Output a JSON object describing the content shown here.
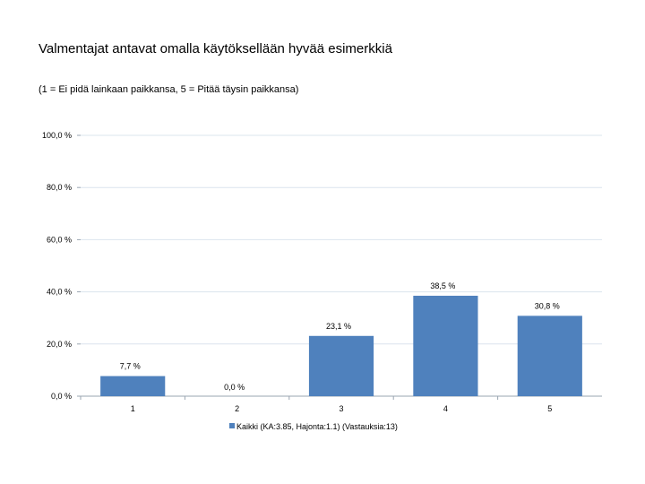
{
  "title": "Valmentajat antavat omalla käytöksellään hyvää esimerkkiä",
  "subtitle": "(1 = Ei pidä lainkaan paikkansa, 5 = Pitää täysin paikkansa)",
  "colors": {
    "bar": "#4f81bd",
    "grid": "#dbe4ee",
    "axis": "#9aa5b1"
  },
  "chart_data": {
    "type": "bar",
    "categories": [
      "1",
      "2",
      "3",
      "4",
      "5"
    ],
    "series": [
      {
        "name": "Kaikki (KA:3.85, Hajonta:1.1) (Vastauksia:13)",
        "values": [
          7.7,
          0.0,
          23.1,
          38.5,
          30.8
        ],
        "labels": [
          "7,7 %",
          "0,0 %",
          "23,1 %",
          "38,5 %",
          "30,8 %"
        ]
      }
    ],
    "ylim": [
      0,
      100
    ],
    "yticks": [
      0,
      20,
      40,
      60,
      80,
      100
    ],
    "ytick_labels": [
      "0,0 %",
      "20,0 %",
      "40,0 %",
      "60,0 %",
      "80,0 %",
      "100,0 %"
    ],
    "legend_position": "bottom",
    "grid": true
  }
}
